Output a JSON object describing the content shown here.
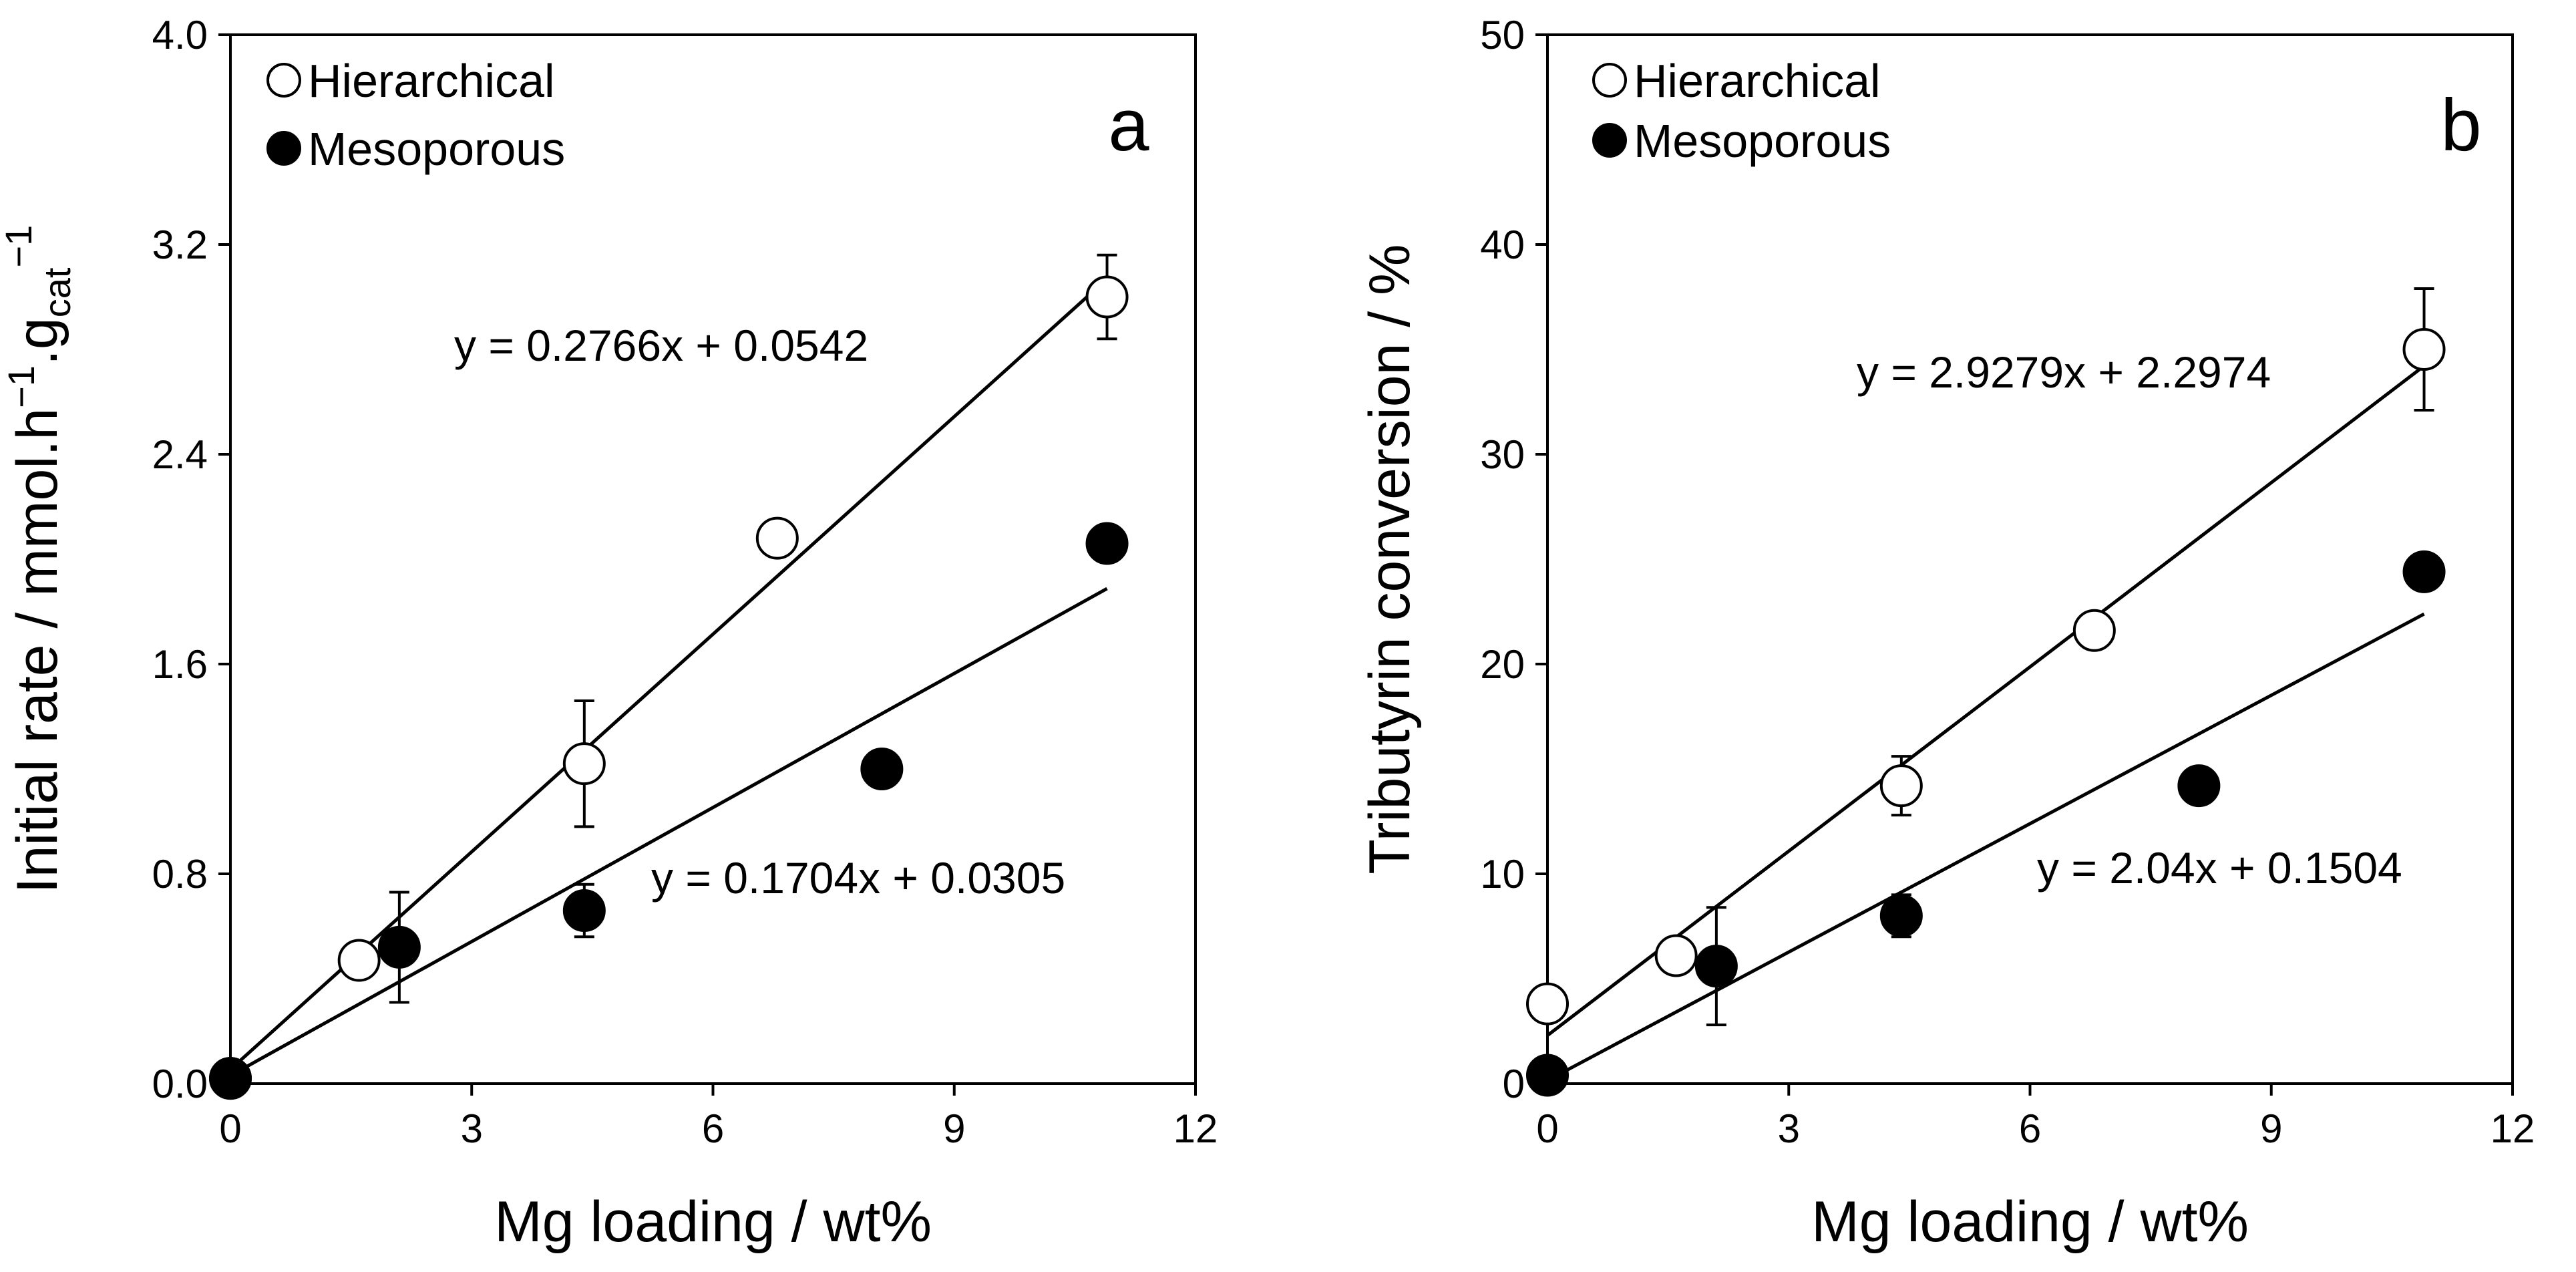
{
  "chart_data": [
    {
      "type": "scatter",
      "panel_label": "a",
      "xlabel": "Mg loading / wt%",
      "ylabel": {
        "base": "Initial rate / mmol.h",
        "exp1": "−1",
        "mid": ".g",
        "sub": "cat",
        "exp2": "−1"
      },
      "xlim": [
        0,
        12
      ],
      "ylim": [
        0,
        4
      ],
      "x_ticks": [
        "0",
        "3",
        "6",
        "9",
        "12"
      ],
      "y_ticks": [
        "0.0",
        "0.8",
        "1.6",
        "2.4",
        "3.2",
        "4.0"
      ],
      "x_tick_values": [
        0,
        3,
        6,
        9,
        12
      ],
      "y_tick_values": [
        0,
        0.8,
        1.6,
        2.4,
        3.2,
        4.0
      ],
      "grid": false,
      "legend_position": "top-left",
      "series": [
        {
          "name": "Hierarchical",
          "marker": "open-circle",
          "points": [
            {
              "x": 0,
              "y": 0.02
            },
            {
              "x": 1.6,
              "y": 0.47
            },
            {
              "x": 4.4,
              "y": 1.22,
              "err": 0.24
            },
            {
              "x": 6.8,
              "y": 2.08
            },
            {
              "x": 10.9,
              "y": 3.0,
              "err": 0.16
            }
          ],
          "fit": {
            "slope": 0.2766,
            "intercept": 0.0542,
            "x_range": [
              0,
              10.9
            ]
          },
          "equation": "y = 0.2766x + 0.0542"
        },
        {
          "name": "Mesoporous",
          "marker": "filled-circle",
          "points": [
            {
              "x": 0,
              "y": 0.02
            },
            {
              "x": 2.1,
              "y": 0.52,
              "err": 0.21
            },
            {
              "x": 4.4,
              "y": 0.66,
              "err": 0.1
            },
            {
              "x": 8.1,
              "y": 1.2
            },
            {
              "x": 10.9,
              "y": 2.06
            }
          ],
          "fit": {
            "slope": 0.1704,
            "intercept": 0.0305,
            "x_range": [
              0,
              10.9
            ]
          },
          "equation": "y = 0.1704x + 0.0305"
        }
      ]
    },
    {
      "type": "scatter",
      "panel_label": "b",
      "xlabel": "Mg loading / wt%",
      "ylabel": {
        "base": "Tributyrin conversion / %"
      },
      "xlim": [
        0,
        12
      ],
      "ylim": [
        0,
        50
      ],
      "x_ticks": [
        "0",
        "3",
        "6",
        "9",
        "12"
      ],
      "y_ticks": [
        "0",
        "10",
        "20",
        "30",
        "40",
        "50"
      ],
      "x_tick_values": [
        0,
        3,
        6,
        9,
        12
      ],
      "y_tick_values": [
        0,
        10,
        20,
        30,
        40,
        50
      ],
      "grid": false,
      "legend_position": "top-left",
      "series": [
        {
          "name": "Hierarchical",
          "marker": "open-circle",
          "points": [
            {
              "x": 0,
              "y": 3.8
            },
            {
              "x": 1.6,
              "y": 6.1
            },
            {
              "x": 4.4,
              "y": 14.2,
              "err": 1.4
            },
            {
              "x": 6.8,
              "y": 21.6
            },
            {
              "x": 10.9,
              "y": 35.0,
              "err": 2.9
            }
          ],
          "fit": {
            "slope": 2.9279,
            "intercept": 2.2974,
            "x_range": [
              0,
              10.9
            ]
          },
          "equation": "y = 2.9279x + 2.2974"
        },
        {
          "name": "Mesoporous",
          "marker": "filled-circle",
          "points": [
            {
              "x": 0,
              "y": 0.4
            },
            {
              "x": 2.1,
              "y": 5.6,
              "err": 2.8
            },
            {
              "x": 4.4,
              "y": 8.0,
              "err": 1.0
            },
            {
              "x": 8.1,
              "y": 14.2
            },
            {
              "x": 10.9,
              "y": 24.4
            }
          ],
          "fit": {
            "slope": 2.04,
            "intercept": 0.1504,
            "x_range": [
              0,
              10.9
            ]
          },
          "equation": "y = 2.04x + 0.1504"
        }
      ]
    }
  ]
}
